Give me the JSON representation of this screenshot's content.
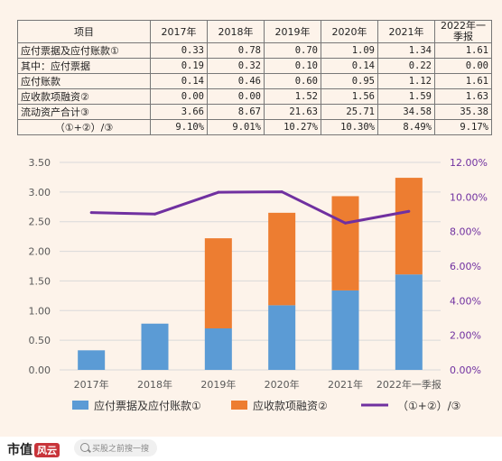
{
  "table": {
    "header": [
      "项目",
      "2017年",
      "2018年",
      "2019年",
      "2020年",
      "2021年",
      "2022年一季报"
    ],
    "rows": [
      {
        "label": "应付票据及应付账款①",
        "values": [
          "0.33",
          "0.78",
          "0.70",
          "1.09",
          "1.34",
          "1.61"
        ]
      },
      {
        "label": "其中：应付票据",
        "values": [
          "0.19",
          "0.32",
          "0.10",
          "0.14",
          "0.22",
          "0.00"
        ]
      },
      {
        "label": "应付账款",
        "values": [
          "0.14",
          "0.46",
          "0.60",
          "0.95",
          "1.12",
          "1.61"
        ]
      },
      {
        "label": "应收款项融资②",
        "values": [
          "0.00",
          "0.00",
          "1.52",
          "1.56",
          "1.59",
          "1.63"
        ]
      },
      {
        "label": "流动资产合计③",
        "values": [
          "3.66",
          "8.67",
          "21.63",
          "25.71",
          "34.58",
          "35.38"
        ]
      },
      {
        "label": "（①+②）/③",
        "values": [
          "9.10%",
          "9.01%",
          "10.27%",
          "10.30%",
          "8.49%",
          "9.17%"
        ]
      }
    ]
  },
  "chart_data": {
    "type": "bar",
    "stacked": true,
    "categories": [
      "2017年",
      "2018年",
      "2019年",
      "2020年",
      "2021年",
      "2022年一季报"
    ],
    "series": [
      {
        "name": "应付票据及应付账款①",
        "type": "bar",
        "color": "#5b9bd5",
        "values": [
          0.33,
          0.78,
          0.7,
          1.09,
          1.34,
          1.61
        ]
      },
      {
        "name": "应收款项融资②",
        "type": "bar",
        "color": "#ed7d31",
        "values": [
          0.0,
          0.0,
          1.52,
          1.56,
          1.59,
          1.63
        ]
      },
      {
        "name": "（①+②）/③",
        "type": "line",
        "axis": "right",
        "color": "#7030a0",
        "values": [
          9.1,
          9.01,
          10.27,
          10.3,
          8.49,
          9.17
        ]
      }
    ],
    "left_axis": {
      "min": 0,
      "max": 3.5,
      "ticks": [
        "0.00",
        "0.50",
        "1.00",
        "1.50",
        "2.00",
        "2.50",
        "3.00",
        "3.50"
      ]
    },
    "right_axis": {
      "min": 0,
      "max": 12,
      "ticks": [
        "0.00%",
        "2.00%",
        "4.00%",
        "6.00%",
        "8.00%",
        "10.00%",
        "12.00%"
      ]
    },
    "grid": true,
    "legend_position": "bottom"
  },
  "footer": {
    "logo_text": "市值",
    "logo_badge": "风云",
    "search_placeholder": "买股之前搜一搜"
  },
  "colors": {
    "bar1": "#5b9bd5",
    "bar2": "#ed7d31",
    "line": "#7030a0",
    "background": "#fdf3ea"
  }
}
